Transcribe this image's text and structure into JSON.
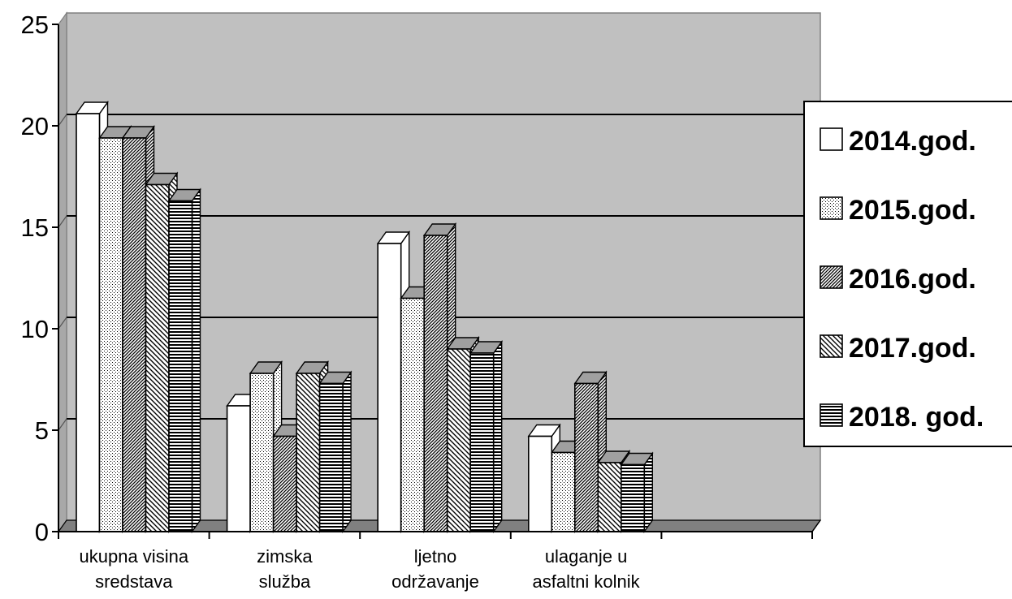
{
  "chart_data": {
    "type": "bar",
    "title": "",
    "xlabel": "",
    "ylabel": "",
    "ylim": [
      0,
      25
    ],
    "y_ticks": [
      "0",
      "5",
      "10",
      "15",
      "20",
      "25"
    ],
    "grid": "horizontal",
    "legend_position": "right",
    "categories": [
      [
        "ukupna visina",
        "sredstava"
      ],
      [
        "zimska",
        "služba"
      ],
      [
        "ljetno",
        "održavanje"
      ],
      [
        "ulaganje u",
        "asfaltni kolnik"
      ]
    ],
    "series": [
      {
        "name": "2014.god.",
        "values": [
          20.6,
          6.2,
          14.2,
          4.7
        ]
      },
      {
        "name": "2015.god.",
        "values": [
          19.4,
          7.8,
          11.5,
          3.9
        ]
      },
      {
        "name": "2016.god.",
        "values": [
          19.4,
          4.7,
          14.6,
          7.3
        ]
      },
      {
        "name": "2017.god.",
        "values": [
          17.1,
          7.8,
          9.0,
          3.4
        ]
      },
      {
        "name": "2018. god.",
        "values": [
          16.3,
          7.3,
          8.8,
          3.3
        ]
      }
    ],
    "colors": {
      "plot_back": "#c0c0c0",
      "floor": "#808080",
      "gridline": "#000000",
      "bar_2014": "#ffffff"
    }
  }
}
